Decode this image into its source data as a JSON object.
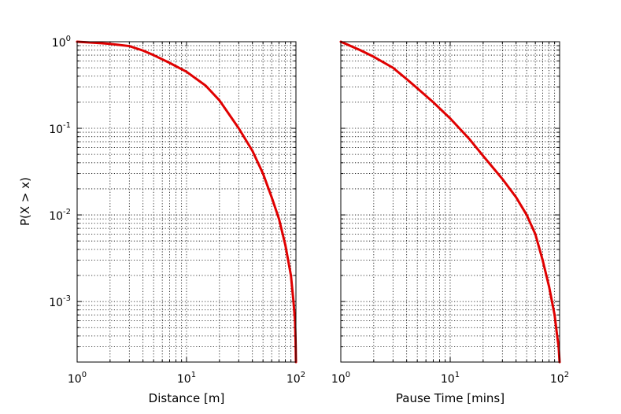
{
  "chart_data": [
    {
      "type": "line",
      "title": "",
      "xlabel": "Distance [m]",
      "ylabel": "P(X > x)",
      "xscale": "log",
      "yscale": "log",
      "xlim": [
        1,
        100
      ],
      "ylim": [
        0.0002,
        1
      ],
      "grid": true,
      "legend": "none",
      "color": "#e00000",
      "x_ticks": [
        {
          "base": "10",
          "exp": "0"
        },
        {
          "base": "10",
          "exp": "1"
        },
        {
          "base": "10",
          "exp": "2"
        }
      ],
      "y_ticks": [
        {
          "base": "10",
          "exp": "0"
        },
        {
          "base": "10",
          "exp": "-1"
        },
        {
          "base": "10",
          "exp": "-2"
        },
        {
          "base": "10",
          "exp": "-3"
        }
      ],
      "series": [
        {
          "x": [
            1.0,
            1.5,
            2.0,
            3.0,
            4.0,
            5.0,
            7.0,
            10.0,
            15.0,
            20.0,
            30.0,
            40.0,
            50.0,
            60.0,
            70.0,
            80.0,
            90.0,
            95.0,
            98.0,
            99.0,
            99.5,
            100.0
          ],
          "y": [
            1.0,
            0.97,
            0.945,
            0.89,
            0.79,
            0.7,
            0.57,
            0.45,
            0.31,
            0.21,
            0.1,
            0.055,
            0.03,
            0.016,
            0.009,
            0.0045,
            0.002,
            0.001,
            0.0006,
            0.0004,
            0.0003,
            0.0002
          ]
        }
      ]
    },
    {
      "type": "line",
      "title": "",
      "xlabel": "Pause Time [mins]",
      "ylabel": "",
      "xscale": "log",
      "yscale": "log",
      "xlim": [
        1,
        100
      ],
      "ylim": [
        0.0002,
        1
      ],
      "grid": true,
      "legend": "none",
      "color": "#e00000",
      "x_ticks": [
        {
          "base": "10",
          "exp": "0"
        },
        {
          "base": "10",
          "exp": "1"
        },
        {
          "base": "10",
          "exp": "2"
        }
      ],
      "series": [
        {
          "x": [
            1.0,
            1.5,
            2.0,
            3.0,
            4.0,
            5.0,
            7.0,
            10.0,
            15.0,
            20.0,
            30.0,
            40.0,
            50.0,
            60.0,
            70.0,
            80.0,
            90.0,
            95.0,
            98.0,
            100.0
          ],
          "y": [
            1.0,
            0.8,
            0.67,
            0.5,
            0.37,
            0.29,
            0.2,
            0.13,
            0.075,
            0.048,
            0.026,
            0.016,
            0.01,
            0.006,
            0.003,
            0.0015,
            0.0007,
            0.0004,
            0.0003,
            0.0002
          ]
        }
      ]
    }
  ]
}
